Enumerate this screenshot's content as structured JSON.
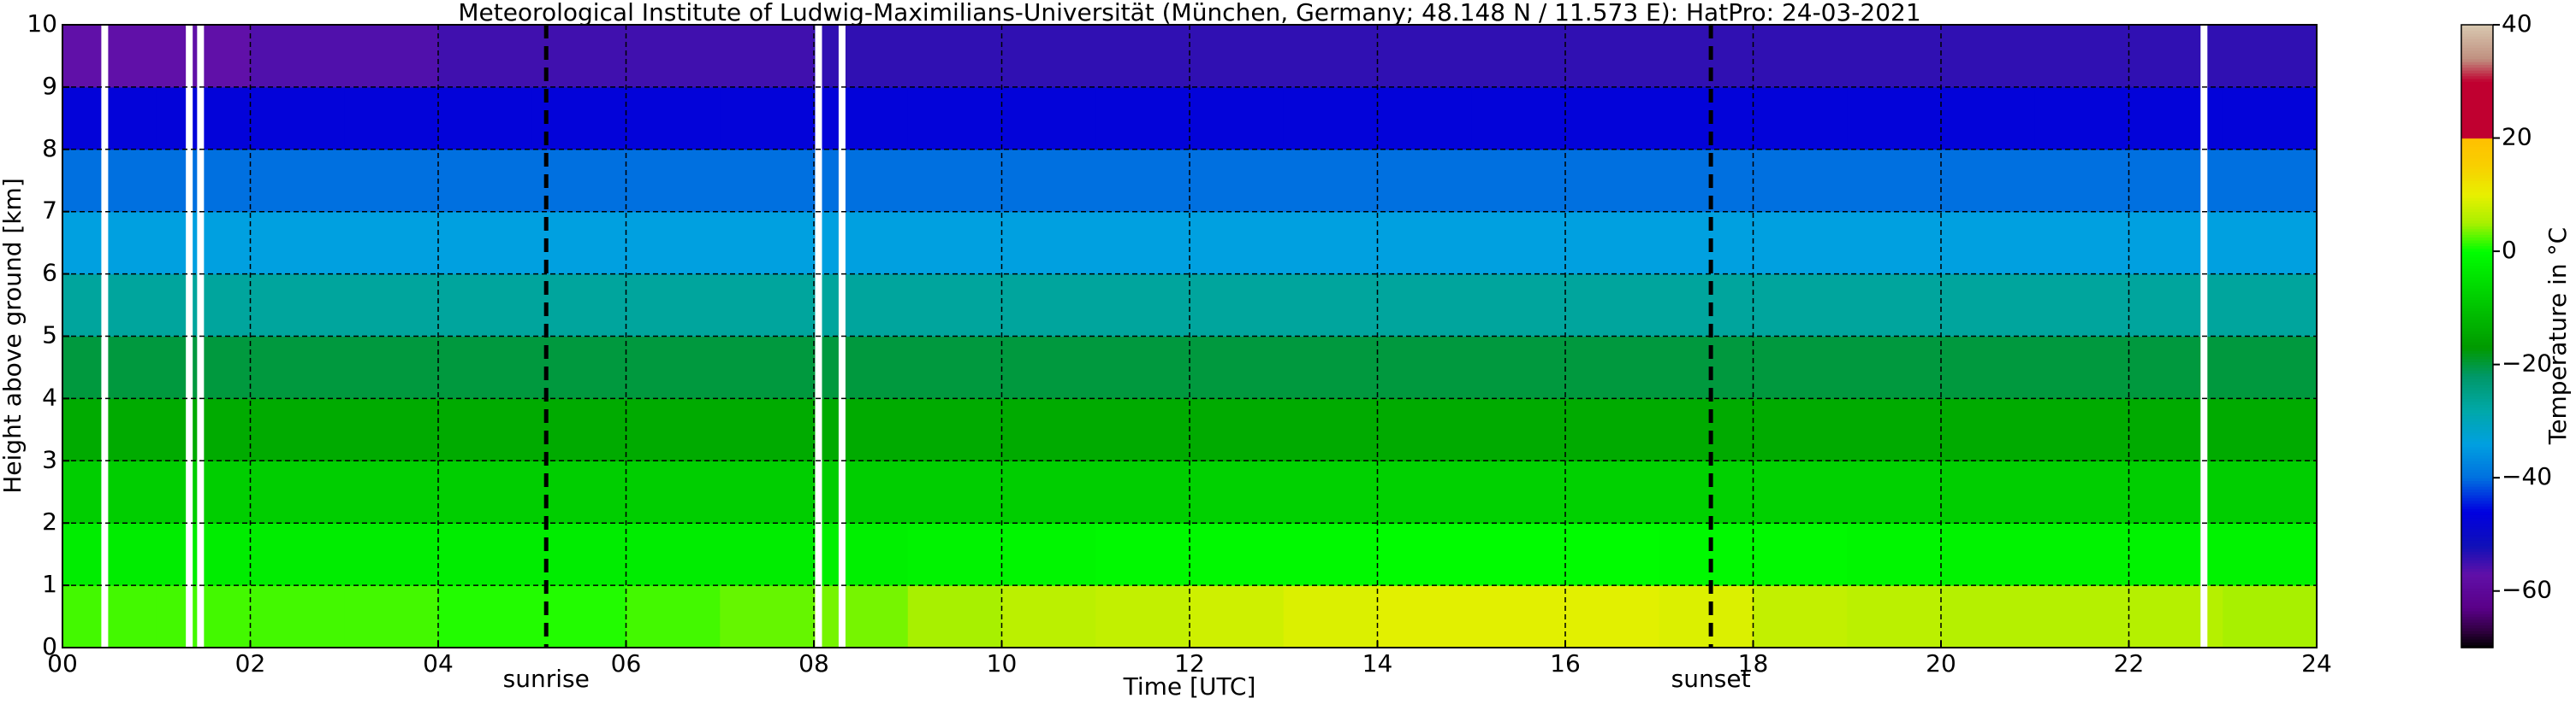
{
  "chart_data": {
    "type": "heatmap",
    "title": "Meteorological Institute of Ludwig-Maximilians-Universität (München, Germany; 48.148 N / 11.573 E):    HatPro: 24-03-2021",
    "xlabel": "Time [UTC]",
    "ylabel": "Height above ground [km]",
    "colorbar_label": "Temperature in °C",
    "xlim": [
      0,
      24
    ],
    "ylim": [
      0,
      10
    ],
    "xticks": [
      {
        "value": 0,
        "label": "00"
      },
      {
        "value": 2,
        "label": "02"
      },
      {
        "value": 4,
        "label": "04"
      },
      {
        "value": 6,
        "label": "06"
      },
      {
        "value": 8,
        "label": "08"
      },
      10,
      12,
      14,
      16,
      18,
      20,
      22,
      24
    ],
    "yticks": [
      0,
      1,
      2,
      3,
      4,
      5,
      6,
      7,
      8,
      9,
      10
    ],
    "grid": true,
    "clim": [
      -70,
      40
    ],
    "cticks": [
      {
        "value": -60,
        "label": "−60"
      },
      {
        "value": -40,
        "label": "−40"
      },
      {
        "value": -20,
        "label": "−20"
      },
      0,
      20,
      40
    ],
    "colormap": [
      {
        "value": -70,
        "color": "#000000"
      },
      {
        "value": -67,
        "color": "#300040"
      },
      {
        "value": -63,
        "color": "#5a0088"
      },
      {
        "value": -57,
        "color": "#6010a8"
      },
      {
        "value": -52,
        "color": "#1010b8"
      },
      {
        "value": -46,
        "color": "#0000e0"
      },
      {
        "value": -40,
        "color": "#0070e0"
      },
      {
        "value": -34,
        "color": "#00a0e0"
      },
      {
        "value": -28,
        "color": "#00a8a8"
      },
      {
        "value": -22,
        "color": "#009868"
      },
      {
        "value": -17,
        "color": "#009a00"
      },
      {
        "value": -9,
        "color": "#00c800"
      },
      {
        "value": 0,
        "color": "#00ff00"
      },
      {
        "value": 5,
        "color": "#a8f000"
      },
      {
        "value": 10,
        "color": "#e8f000"
      },
      {
        "value": 15,
        "color": "#f8d000"
      },
      {
        "value": 20,
        "color": "#ffc000"
      },
      {
        "value": 20.1,
        "color": "#c00030"
      },
      {
        "value": 30,
        "color": "#c00030"
      },
      {
        "value": 34,
        "color": "#c09080"
      },
      {
        "value": 40,
        "color": "#d8c8b0"
      }
    ],
    "x": [
      0.5,
      1.5,
      2.5,
      3.5,
      4.5,
      5.5,
      6.5,
      7.5,
      8.5,
      9.5,
      10.5,
      11.5,
      12.5,
      13.5,
      14.5,
      15.5,
      16.5,
      17.5,
      18.5,
      19.5,
      20.5,
      21.5,
      22.5,
      23.5
    ],
    "y": [
      0.5,
      1.5,
      2.5,
      3.5,
      4.5,
      5.5,
      6.5,
      7.5,
      8.5,
      9.5
    ],
    "z": [
      [
        2,
        2,
        2,
        2,
        1,
        1,
        2,
        3,
        3.5,
        5,
        6.5,
        7,
        8,
        9,
        9.5,
        9.5,
        9.5,
        9,
        7,
        6.5,
        6,
        6,
        6,
        5
      ],
      [
        -3,
        -3,
        -3,
        -3,
        -3,
        -3,
        -3,
        -3,
        -2.5,
        -2,
        -1.5,
        -1,
        -1,
        -1,
        -0.5,
        -0.5,
        -0.5,
        -1,
        -1,
        -1.5,
        -2,
        -2,
        -2,
        -2
      ],
      [
        -8,
        -8,
        -8,
        -8,
        -8,
        -8,
        -8,
        -8,
        -8,
        -8,
        -8,
        -8,
        -7.5,
        -7.5,
        -7.5,
        -7.5,
        -7.5,
        -7.5,
        -7.5,
        -7.5,
        -8,
        -8,
        -8,
        -8
      ],
      [
        -14,
        -14,
        -14,
        -14,
        -14,
        -14,
        -14,
        -14,
        -14,
        -14,
        -14,
        -14,
        -14,
        -14,
        -14,
        -14,
        -14,
        -14,
        -14,
        -14,
        -14,
        -14,
        -14,
        -14
      ],
      [
        -20,
        -20,
        -20,
        -20,
        -20,
        -20,
        -20,
        -20,
        -20,
        -20,
        -20,
        -20,
        -20,
        -20,
        -20,
        -20,
        -20,
        -20,
        -20,
        -20,
        -20,
        -20,
        -20,
        -20
      ],
      [
        -27,
        -27,
        -27,
        -27,
        -27,
        -27,
        -27,
        -27,
        -27,
        -27,
        -27,
        -27,
        -27,
        -27,
        -27,
        -27,
        -27,
        -27,
        -27,
        -27,
        -27,
        -27,
        -27,
        -27
      ],
      [
        -34,
        -34,
        -34,
        -34,
        -34,
        -34,
        -34,
        -34,
        -34,
        -34,
        -34,
        -34,
        -34,
        -34,
        -34,
        -34,
        -34,
        -34,
        -34,
        -34,
        -34,
        -34,
        -34,
        -34
      ],
      [
        -40,
        -40,
        -40,
        -40,
        -40,
        -40,
        -40,
        -40,
        -40,
        -40,
        -40,
        -40,
        -40,
        -40,
        -40,
        -40,
        -40,
        -40,
        -40,
        -40,
        -40,
        -40,
        -40,
        -40
      ],
      [
        -47,
        -47,
        -47,
        -47,
        -47,
        -47,
        -47,
        -47,
        -47,
        -47,
        -47,
        -47,
        -47,
        -47,
        -47,
        -47,
        -47,
        -47,
        -47,
        -47,
        -47,
        -47,
        -47,
        -47
      ],
      [
        -57,
        -57,
        -56,
        -56,
        -55,
        -55,
        -55,
        -55,
        -54,
        -54,
        -54,
        -54,
        -54,
        -54,
        -54,
        -54,
        -54,
        -54,
        -54,
        -54,
        -54,
        -54,
        -54,
        -54
      ]
    ],
    "missing_times": [
      0.45,
      1.35,
      1.47,
      8.05,
      8.3,
      22.8
    ],
    "annotations": [
      {
        "text": "sunrise",
        "x": 5.15
      },
      {
        "text": "sunset",
        "x": 17.55
      }
    ]
  }
}
